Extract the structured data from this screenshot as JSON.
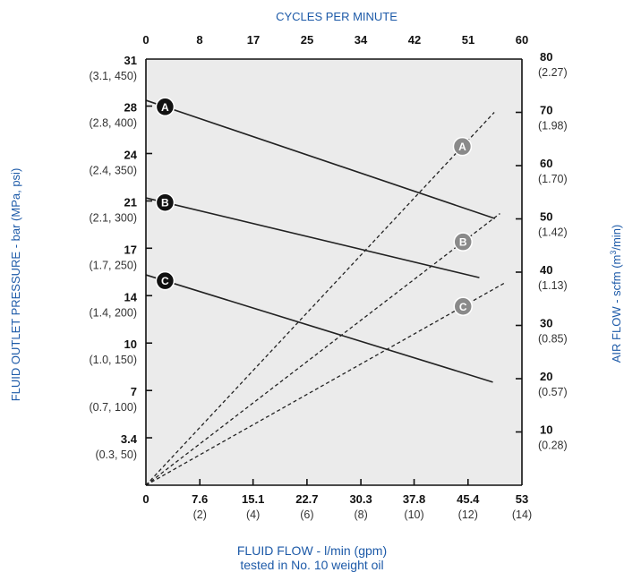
{
  "chart_data": {
    "type": "line",
    "title": "",
    "x_top": {
      "label": "CYCLES PER MINUTE",
      "ticks": [
        "0",
        "8",
        "17",
        "25",
        "34",
        "42",
        "51",
        "60"
      ]
    },
    "x_bottom": {
      "label": "FLUID FLOW - l/min (gpm)",
      "sublabel": "tested in No. 10 weight oil",
      "range": [
        0,
        53
      ],
      "ticks": [
        {
          "value": 0,
          "main": "0",
          "sub": ""
        },
        {
          "value": 7.6,
          "main": "7.6",
          "sub": "(2)"
        },
        {
          "value": 15.1,
          "main": "15.1",
          "sub": "(4)"
        },
        {
          "value": 22.7,
          "main": "22.7",
          "sub": "(6)"
        },
        {
          "value": 30.3,
          "main": "30.3",
          "sub": "(8)"
        },
        {
          "value": 37.8,
          "main": "37.8",
          "sub": "(10)"
        },
        {
          "value": 45.4,
          "main": "45.4",
          "sub": "(12)"
        },
        {
          "value": 53,
          "main": "53",
          "sub": "(14)"
        }
      ]
    },
    "y_left": {
      "label": "FLUID OUTLET PRESSURE - bar (MPa, psi)",
      "range": [
        0,
        31
      ],
      "ticks": [
        {
          "value": 31,
          "main": "31",
          "sub": "(3.1, 450)"
        },
        {
          "value": 27.58,
          "main": "28",
          "sub": "(2.8, 400)"
        },
        {
          "value": 24.13,
          "main": "24",
          "sub": "(2.4, 350)"
        },
        {
          "value": 20.68,
          "main": "21",
          "sub": "(2.1, 300)"
        },
        {
          "value": 17.24,
          "main": "17",
          "sub": "(1.7, 250)"
        },
        {
          "value": 13.79,
          "main": "14",
          "sub": "(1.4, 200)"
        },
        {
          "value": 10.34,
          "main": "10",
          "sub": "(1.0, 150)"
        },
        {
          "value": 6.89,
          "main": "7",
          "sub": "(0.7, 100)"
        },
        {
          "value": 3.45,
          "main": "3.4",
          "sub": "(0.3, 50)"
        }
      ]
    },
    "y_right": {
      "label_prefix": "AIR FLOW - scfm (m",
      "label_sup": "3",
      "label_suffix": "/min)",
      "range": [
        0,
        80
      ],
      "ticks": [
        {
          "value": 80,
          "main": "80",
          "sub": "(2.27)"
        },
        {
          "value": 70,
          "main": "70",
          "sub": "(1.98)"
        },
        {
          "value": 60,
          "main": "60",
          "sub": "(1.70)"
        },
        {
          "value": 50,
          "main": "50",
          "sub": "(1.42)"
        },
        {
          "value": 40,
          "main": "40",
          "sub": "(1.13)"
        },
        {
          "value": 30,
          "main": "30",
          "sub": "(0.85)"
        },
        {
          "value": 20,
          "main": "20",
          "sub": "(0.57)"
        },
        {
          "value": 10,
          "main": "10",
          "sub": "(0.28)"
        }
      ]
    },
    "pressure_series": [
      {
        "name": "A",
        "badge_x": 2.7,
        "x": [
          0,
          49.2
        ],
        "y": [
          28.0,
          19.4
        ]
      },
      {
        "name": "B",
        "badge_x": 2.7,
        "x": [
          0,
          47.0
        ],
        "y": [
          20.9,
          15.1
        ]
      },
      {
        "name": "C",
        "badge_x": 2.7,
        "x": [
          0,
          48.9
        ],
        "y": [
          15.3,
          7.5
        ]
      }
    ],
    "airflow_series": [
      {
        "name": "A",
        "badge_x": 44.6,
        "x": [
          0,
          49.1
        ],
        "y": [
          0,
          70.0
        ]
      },
      {
        "name": "B",
        "badge_x": 44.7,
        "x": [
          0,
          49.9
        ],
        "y": [
          0,
          51.0
        ]
      },
      {
        "name": "C",
        "badge_x": 44.7,
        "x": [
          0,
          50.6
        ],
        "y": [
          0,
          38.0
        ]
      }
    ],
    "grid": false,
    "plot_background": "#ebebeb",
    "colors": {
      "axis_label": "#1d5aa8",
      "pressure_badge": "#111111",
      "airflow_badge": "#8a8a8a",
      "line": "#222222"
    }
  }
}
